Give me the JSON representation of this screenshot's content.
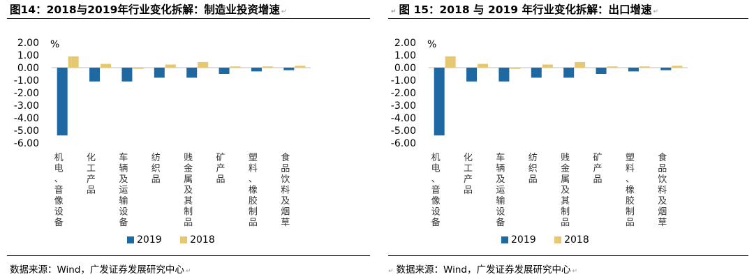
{
  "panels": [
    {
      "title": "图14：2018与2019年行业变化拆解：制造业投资增速",
      "source": "数据来源：Wind，广发证券发展研究中心",
      "chart_data": {
        "type": "bar",
        "ylabel": "%",
        "ylim": [
          -6.0,
          2.0
        ],
        "yticks": [
          "2.00",
          "1.00",
          "0.00",
          "-1.00",
          "-2.00",
          "-3.00",
          "-4.00",
          "-5.00",
          "-6.00"
        ],
        "categories": [
          "机电、音像设备",
          "化工产品",
          "车辆及运输设备",
          "纺织品",
          "贱金属及其制品",
          "矿产品",
          "塑料、橡胶制品",
          "食品饮料及烟草"
        ],
        "series": [
          {
            "name": "2019",
            "color": "#1f69a3",
            "values": [
              -5.4,
              -1.1,
              -1.1,
              -0.8,
              -0.8,
              -0.5,
              -0.3,
              -0.2
            ]
          },
          {
            "name": "2018",
            "color": "#e6c872",
            "values": [
              0.9,
              0.3,
              -0.1,
              0.25,
              0.45,
              0.1,
              0.1,
              0.15
            ]
          }
        ]
      }
    },
    {
      "title": "图 15：2018 与 2019 年行业变化拆解：出口增速",
      "source": "数据来源：Wind，广发证券发展研究中心",
      "chart_data": {
        "type": "bar",
        "ylabel": "%",
        "ylim": [
          -6.0,
          2.0
        ],
        "yticks": [
          "2.00",
          "1.00",
          "0.00",
          "-1.00",
          "-2.00",
          "-3.00",
          "-4.00",
          "-5.00",
          "-6.00"
        ],
        "categories": [
          "机电、音像设备",
          "化工产品",
          "车辆及运输设备",
          "纺织品",
          "贱金属及其制品",
          "矿产品",
          "塑料、橡胶制品",
          "食品饮料及烟草"
        ],
        "series": [
          {
            "name": "2019",
            "color": "#1f69a3",
            "values": [
              -5.4,
              -1.1,
              -1.1,
              -0.8,
              -0.8,
              -0.5,
              -0.3,
              -0.2
            ]
          },
          {
            "name": "2018",
            "color": "#e6c872",
            "values": [
              0.9,
              0.3,
              -0.1,
              0.25,
              0.45,
              0.1,
              0.1,
              0.15
            ]
          }
        ]
      }
    }
  ]
}
